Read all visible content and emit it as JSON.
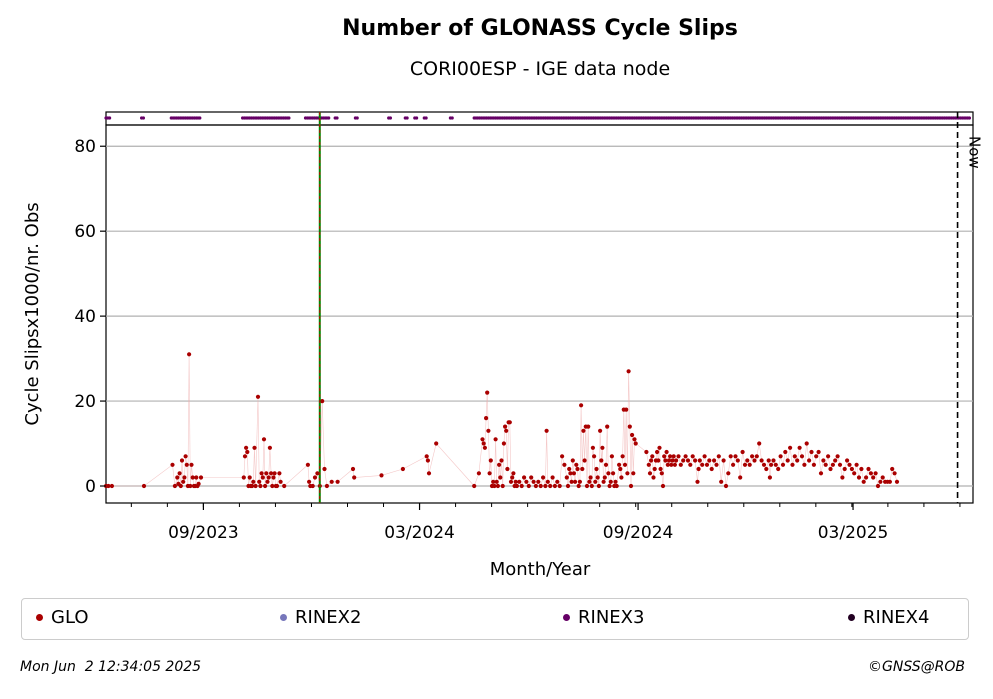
{
  "chart_data": {
    "type": "scatter",
    "title": "Number of GLONASS Cycle Slips",
    "subtitle": "CORI00ESP - IGE data node",
    "xlabel": "Month/Year",
    "ylabel": "Cycle Slipsx1000/nr. Obs",
    "ylim": [
      -4,
      85
    ],
    "yticks": [
      0,
      20,
      40,
      60,
      80
    ],
    "xrange_days": [
      0,
      730
    ],
    "xticks": [
      {
        "label": "09/2023",
        "day": 82
      },
      {
        "label": "03/2024",
        "day": 264
      },
      {
        "label": "09/2024",
        "day": 448
      },
      {
        "label": "03/2025",
        "day": 629
      }
    ],
    "grid": "horizontal",
    "now_label": "Now",
    "now_day": 717,
    "event_day": 180,
    "legend": [
      {
        "name": "GLO",
        "color": "#aa0000"
      },
      {
        "name": "RINEX2",
        "color": "#7777bb"
      },
      {
        "name": "RINEX3",
        "color": "#660066"
      },
      {
        "name": "RINEX4",
        "color": "#220022"
      }
    ],
    "series": [
      {
        "name": "GLO",
        "points": [
          [
            0,
            0
          ],
          [
            2,
            0
          ],
          [
            5,
            0
          ],
          [
            32,
            0
          ],
          [
            56,
            5
          ],
          [
            58,
            0
          ],
          [
            60,
            2
          ],
          [
            61,
            0.5
          ],
          [
            62,
            3
          ],
          [
            63,
            0
          ],
          [
            64,
            6
          ],
          [
            65,
            1
          ],
          [
            66,
            2
          ],
          [
            67,
            7
          ],
          [
            68,
            5
          ],
          [
            69,
            0
          ],
          [
            70,
            31
          ],
          [
            71,
            0
          ],
          [
            72,
            5
          ],
          [
            73,
            2
          ],
          [
            74,
            0
          ],
          [
            75,
            0
          ],
          [
            76,
            2
          ],
          [
            77,
            0
          ],
          [
            78,
            0.5
          ],
          [
            80,
            2
          ],
          [
            116,
            2
          ],
          [
            117,
            7
          ],
          [
            118,
            9
          ],
          [
            119,
            8
          ],
          [
            120,
            0
          ],
          [
            121,
            2
          ],
          [
            122,
            0
          ],
          [
            123,
            0
          ],
          [
            124,
            1
          ],
          [
            125,
            9
          ],
          [
            126,
            0
          ],
          [
            128,
            21
          ],
          [
            129,
            1
          ],
          [
            130,
            0
          ],
          [
            131,
            3
          ],
          [
            132,
            2
          ],
          [
            133,
            11
          ],
          [
            134,
            0
          ],
          [
            135,
            3
          ],
          [
            136,
            1
          ],
          [
            137,
            2
          ],
          [
            138,
            9
          ],
          [
            139,
            3
          ],
          [
            140,
            0
          ],
          [
            141,
            2
          ],
          [
            142,
            3
          ],
          [
            143,
            0
          ],
          [
            144,
            0
          ],
          [
            146,
            3
          ],
          [
            147,
            1
          ],
          [
            150,
            0
          ],
          [
            170,
            5
          ],
          [
            171,
            1
          ],
          [
            172,
            0
          ],
          [
            174,
            0
          ],
          [
            176,
            2
          ],
          [
            178,
            3
          ],
          [
            180,
            0
          ],
          [
            182,
            20
          ],
          [
            184,
            4
          ],
          [
            186,
            0
          ],
          [
            190,
            1
          ],
          [
            195,
            1
          ],
          [
            208,
            4
          ],
          [
            209,
            2
          ],
          [
            232,
            2.5
          ],
          [
            250,
            4
          ],
          [
            270,
            7
          ],
          [
            271,
            6
          ],
          [
            272,
            3
          ],
          [
            278,
            10
          ],
          [
            310,
            0
          ],
          [
            314,
            3
          ],
          [
            317,
            11
          ],
          [
            318,
            10
          ],
          [
            319,
            9
          ],
          [
            320,
            16
          ],
          [
            321,
            22
          ],
          [
            322,
            13
          ],
          [
            323,
            3
          ],
          [
            324,
            6
          ],
          [
            325,
            0
          ],
          [
            326,
            1
          ],
          [
            327,
            0
          ],
          [
            328,
            11
          ],
          [
            329,
            1
          ],
          [
            330,
            0
          ],
          [
            331,
            5
          ],
          [
            332,
            2
          ],
          [
            333,
            6
          ],
          [
            334,
            0
          ],
          [
            335,
            10
          ],
          [
            336,
            14
          ],
          [
            337,
            13
          ],
          [
            338,
            4
          ],
          [
            339,
            15
          ],
          [
            340,
            15
          ],
          [
            341,
            1
          ],
          [
            342,
            2
          ],
          [
            343,
            3
          ],
          [
            344,
            0
          ],
          [
            345,
            1
          ],
          [
            346,
            0
          ],
          [
            348,
            1
          ],
          [
            350,
            0
          ],
          [
            352,
            2
          ],
          [
            354,
            1
          ],
          [
            356,
            0
          ],
          [
            358,
            2
          ],
          [
            360,
            1
          ],
          [
            362,
            0
          ],
          [
            364,
            1
          ],
          [
            366,
            0
          ],
          [
            368,
            2
          ],
          [
            370,
            0
          ],
          [
            371,
            13
          ],
          [
            372,
            1
          ],
          [
            374,
            0
          ],
          [
            376,
            2
          ],
          [
            378,
            0
          ],
          [
            380,
            1
          ],
          [
            382,
            0
          ],
          [
            384,
            7
          ],
          [
            386,
            5
          ],
          [
            388,
            2
          ],
          [
            389,
            0
          ],
          [
            390,
            4
          ],
          [
            391,
            3
          ],
          [
            392,
            1
          ],
          [
            393,
            6
          ],
          [
            394,
            3
          ],
          [
            395,
            1
          ],
          [
            396,
            5
          ],
          [
            397,
            4
          ],
          [
            398,
            0
          ],
          [
            399,
            1
          ],
          [
            400,
            19
          ],
          [
            401,
            4
          ],
          [
            402,
            13
          ],
          [
            403,
            6
          ],
          [
            404,
            14
          ],
          [
            405,
            0
          ],
          [
            406,
            14
          ],
          [
            407,
            1
          ],
          [
            408,
            2
          ],
          [
            409,
            0
          ],
          [
            410,
            9
          ],
          [
            411,
            7
          ],
          [
            412,
            1
          ],
          [
            413,
            4
          ],
          [
            414,
            2
          ],
          [
            415,
            0
          ],
          [
            416,
            13
          ],
          [
            417,
            6
          ],
          [
            418,
            9
          ],
          [
            419,
            1
          ],
          [
            420,
            2
          ],
          [
            421,
            5
          ],
          [
            422,
            14
          ],
          [
            423,
            3
          ],
          [
            424,
            0
          ],
          [
            425,
            1
          ],
          [
            426,
            7
          ],
          [
            427,
            3
          ],
          [
            428,
            0
          ],
          [
            429,
            1
          ],
          [
            430,
            0
          ],
          [
            432,
            5
          ],
          [
            433,
            4
          ],
          [
            434,
            2
          ],
          [
            435,
            7
          ],
          [
            436,
            18
          ],
          [
            437,
            5
          ],
          [
            438,
            18
          ],
          [
            439,
            3
          ],
          [
            440,
            27
          ],
          [
            441,
            14
          ],
          [
            442,
            0
          ],
          [
            443,
            12
          ],
          [
            444,
            3
          ],
          [
            445,
            11
          ],
          [
            446,
            10
          ],
          [
            455,
            8
          ],
          [
            457,
            5
          ],
          [
            458,
            3
          ],
          [
            459,
            6
          ],
          [
            460,
            7
          ],
          [
            461,
            2
          ],
          [
            462,
            4
          ],
          [
            463,
            6
          ],
          [
            464,
            8
          ],
          [
            465,
            6
          ],
          [
            466,
            9
          ],
          [
            467,
            4
          ],
          [
            468,
            3
          ],
          [
            469,
            0
          ],
          [
            470,
            7
          ],
          [
            471,
            6
          ],
          [
            472,
            8
          ],
          [
            473,
            5
          ],
          [
            474,
            6
          ],
          [
            475,
            7
          ],
          [
            476,
            5
          ],
          [
            477,
            6
          ],
          [
            478,
            7
          ],
          [
            479,
            5
          ],
          [
            480,
            6
          ],
          [
            482,
            7
          ],
          [
            484,
            5
          ],
          [
            486,
            6
          ],
          [
            488,
            7
          ],
          [
            490,
            6
          ],
          [
            492,
            5
          ],
          [
            494,
            7
          ],
          [
            496,
            6
          ],
          [
            498,
            1
          ],
          [
            499,
            4
          ],
          [
            500,
            6
          ],
          [
            502,
            5
          ],
          [
            504,
            7
          ],
          [
            506,
            5
          ],
          [
            508,
            6
          ],
          [
            510,
            4
          ],
          [
            512,
            6
          ],
          [
            514,
            5
          ],
          [
            516,
            7
          ],
          [
            518,
            1
          ],
          [
            520,
            6
          ],
          [
            522,
            0
          ],
          [
            524,
            3
          ],
          [
            526,
            7
          ],
          [
            528,
            5
          ],
          [
            530,
            7
          ],
          [
            532,
            6
          ],
          [
            534,
            2
          ],
          [
            536,
            8
          ],
          [
            538,
            5
          ],
          [
            540,
            6
          ],
          [
            542,
            5
          ],
          [
            544,
            7
          ],
          [
            546,
            6
          ],
          [
            548,
            7
          ],
          [
            550,
            10
          ],
          [
            552,
            6
          ],
          [
            554,
            5
          ],
          [
            556,
            4
          ],
          [
            558,
            6
          ],
          [
            559,
            2
          ],
          [
            560,
            5
          ],
          [
            562,
            6
          ],
          [
            564,
            5
          ],
          [
            566,
            4
          ],
          [
            568,
            7
          ],
          [
            570,
            5
          ],
          [
            572,
            8
          ],
          [
            574,
            6
          ],
          [
            576,
            9
          ],
          [
            578,
            5
          ],
          [
            580,
            7
          ],
          [
            582,
            6
          ],
          [
            584,
            9
          ],
          [
            586,
            7
          ],
          [
            588,
            5
          ],
          [
            590,
            10
          ],
          [
            592,
            6
          ],
          [
            594,
            8
          ],
          [
            596,
            5
          ],
          [
            598,
            7
          ],
          [
            600,
            8
          ],
          [
            602,
            3
          ],
          [
            604,
            6
          ],
          [
            606,
            5
          ],
          [
            608,
            7
          ],
          [
            610,
            4
          ],
          [
            612,
            5
          ],
          [
            614,
            6
          ],
          [
            616,
            7
          ],
          [
            618,
            5
          ],
          [
            620,
            2
          ],
          [
            622,
            4
          ],
          [
            624,
            6
          ],
          [
            626,
            5
          ],
          [
            628,
            4
          ],
          [
            630,
            3
          ],
          [
            632,
            5
          ],
          [
            634,
            2
          ],
          [
            636,
            4
          ],
          [
            638,
            1
          ],
          [
            640,
            2
          ],
          [
            642,
            4
          ],
          [
            644,
            3
          ],
          [
            646,
            2
          ],
          [
            648,
            3
          ],
          [
            650,
            0
          ],
          [
            652,
            1
          ],
          [
            654,
            2
          ],
          [
            656,
            1
          ],
          [
            658,
            1
          ],
          [
            660,
            1
          ],
          [
            662,
            4
          ],
          [
            664,
            3
          ],
          [
            666,
            1
          ]
        ]
      },
      {
        "name": "RINEX3",
        "ranges": [
          [
            0,
            4
          ],
          [
            30,
            32
          ],
          [
            55,
            80
          ],
          [
            115,
            155
          ],
          [
            168,
            188
          ],
          [
            193,
            195
          ],
          [
            210,
            212
          ],
          [
            238,
            240
          ],
          [
            252,
            254
          ],
          [
            260,
            262
          ],
          [
            268,
            270
          ],
          [
            290,
            292
          ],
          [
            310,
            728
          ]
        ]
      }
    ]
  },
  "footer": {
    "timestamp": "Mon Jun  2 12:34:05 2025",
    "copyright": "©GNSS@ROB"
  }
}
